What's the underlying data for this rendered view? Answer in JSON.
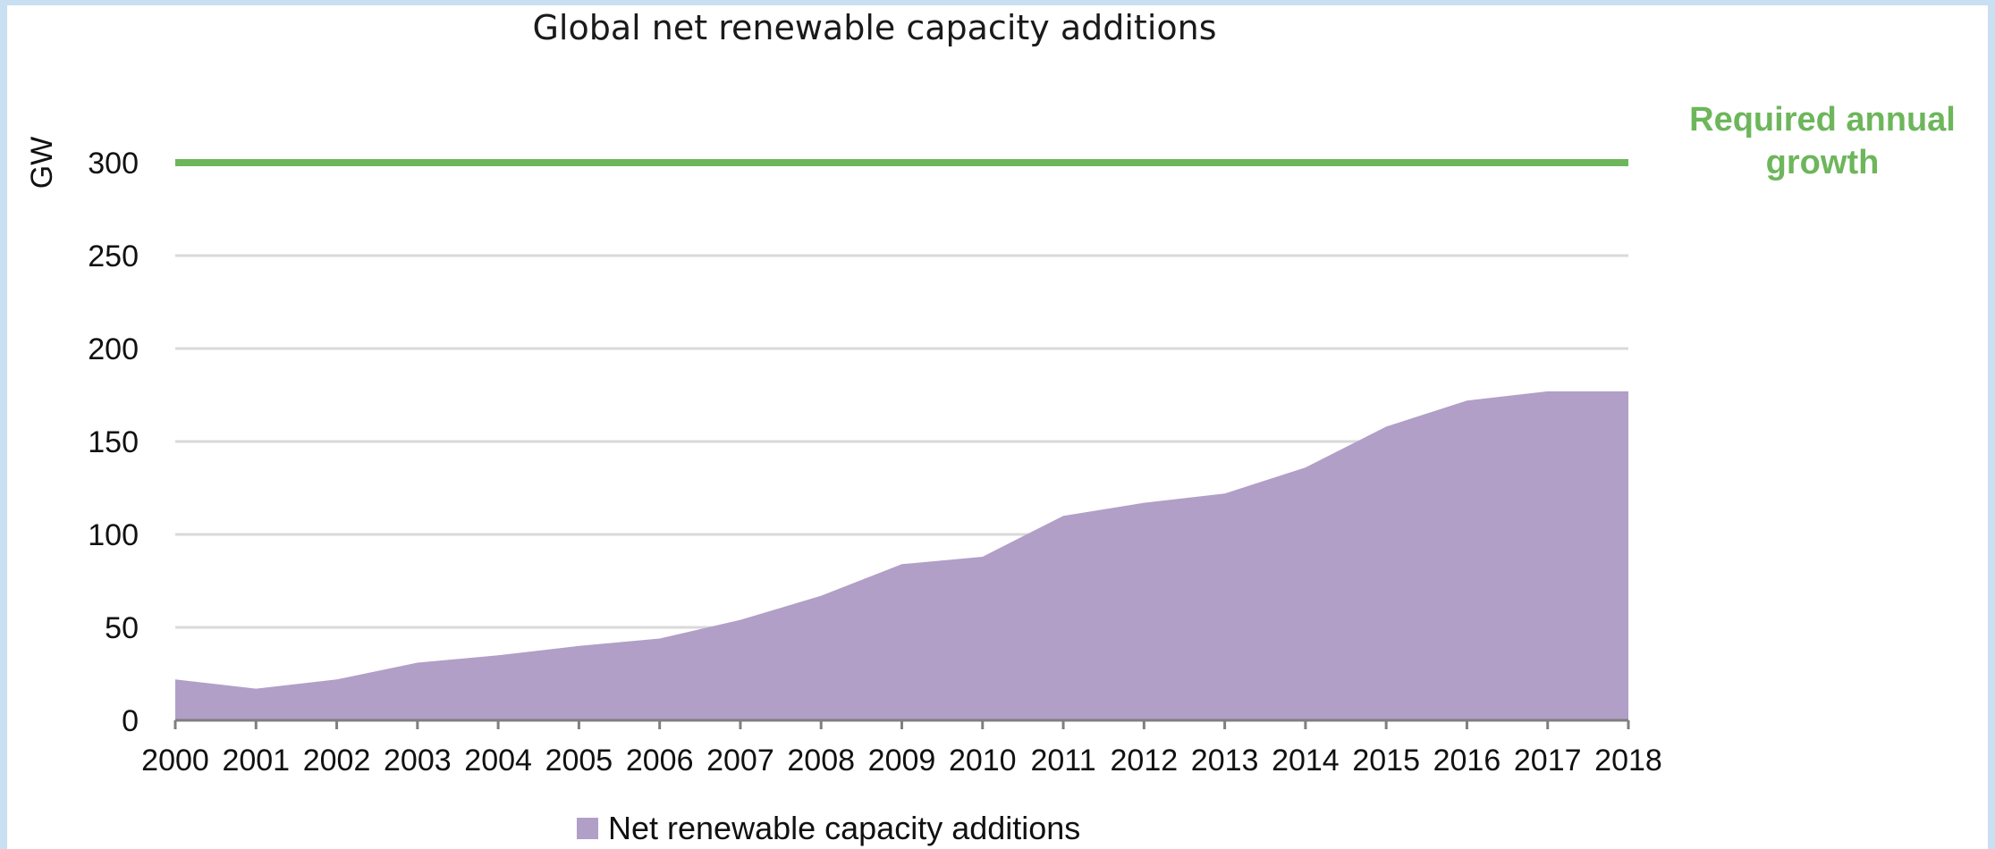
{
  "chart_data": {
    "type": "area",
    "title": "Global net renewable capacity additions",
    "xlabel": "",
    "ylabel": "GW",
    "ylim": [
      0,
      300
    ],
    "yticks": [
      0,
      50,
      100,
      150,
      200,
      250,
      300
    ],
    "grid": true,
    "legend_position": "bottom",
    "categories": [
      "2000",
      "2001",
      "2002",
      "2003",
      "2004",
      "2005",
      "2006",
      "2007",
      "2008",
      "2009",
      "2010",
      "2011",
      "2012",
      "2013",
      "2014",
      "2015",
      "2016",
      "2017",
      "2018"
    ],
    "series": [
      {
        "name": "Net renewable capacity additions",
        "color": "#b19fc7",
        "values": [
          22,
          17,
          22,
          31,
          35,
          40,
          44,
          54,
          67,
          84,
          88,
          110,
          117,
          122,
          136,
          158,
          172,
          177,
          177
        ]
      }
    ],
    "reference_line": {
      "value": 300,
      "color": "#6db65b",
      "label_line1": "Required annual",
      "label_line2": "growth"
    }
  }
}
